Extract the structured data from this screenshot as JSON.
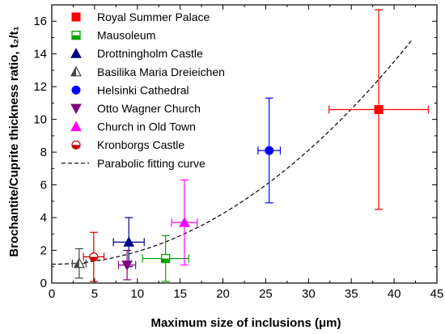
{
  "chart_data": {
    "type": "scatter",
    "title": "",
    "xlabel": "Maximum size of inclusions (μm)",
    "ylabel": "Brochantite/Cuprite thickness ratio, t₂/t₁",
    "xlim": [
      0,
      45
    ],
    "ylim": [
      0,
      17
    ],
    "xticks": [
      0,
      5,
      10,
      15,
      20,
      25,
      30,
      35,
      40,
      45
    ],
    "yticks": [
      0,
      2,
      4,
      6,
      8,
      10,
      12,
      14,
      16
    ],
    "legend_position": "top-left",
    "series": [
      {
        "name": "Royal Summer Palace",
        "marker": "square",
        "color": "#ff0000",
        "x": 38.2,
        "y": 10.6,
        "xerr": 5.8,
        "yerr_low": 6.1,
        "yerr_high": 6.1
      },
      {
        "name": "Mausoleum",
        "marker": "square-half",
        "color": "#00a000",
        "x": 13.3,
        "y": 1.5,
        "xerr": 2.7,
        "yerr_low": 1.4,
        "yerr_high": 1.4
      },
      {
        "name": "Drottningholm Castle",
        "marker": "triangle-up",
        "color": "#00008b",
        "x": 9.0,
        "y": 2.5,
        "xerr": 1.8,
        "yerr_low": 1.5,
        "yerr_high": 1.5
      },
      {
        "name": "Basilika Maria Dreieichen",
        "marker": "triangle-half",
        "color": "#444444",
        "x": 3.2,
        "y": 1.2,
        "xerr": 0.8,
        "yerr_low": 0.9,
        "yerr_high": 0.9
      },
      {
        "name": "Helsinki Cathedral",
        "marker": "circle",
        "color": "#0000ff",
        "x": 25.4,
        "y": 8.1,
        "xerr": 1.3,
        "yerr_low": 3.2,
        "yerr_high": 3.2
      },
      {
        "name": "Otto Wagner Church",
        "marker": "triangle-down",
        "color": "#800080",
        "x": 8.8,
        "y": 1.1,
        "xerr": 1.0,
        "yerr_low": 0.9,
        "yerr_high": 0.9
      },
      {
        "name": "Church in Old Town",
        "marker": "triangle-up",
        "color": "#ff00ff",
        "x": 15.5,
        "y": 3.7,
        "xerr": 1.5,
        "yerr_low": 2.6,
        "yerr_high": 2.6
      },
      {
        "name": "Kronborgs Castle",
        "marker": "circle-half",
        "color": "#cc0000",
        "x": 4.9,
        "y": 1.6,
        "xerr": 1.2,
        "yerr_low": 1.5,
        "yerr_high": 1.5
      }
    ],
    "fit_curve": {
      "name": "Parabolic fitting curve",
      "style": "dashed",
      "color": "#000000",
      "equation": "y = 1.15 + 0.00774 * x^2",
      "a": 1.15,
      "b": 0.00774,
      "x_range": [
        0,
        42
      ]
    }
  }
}
